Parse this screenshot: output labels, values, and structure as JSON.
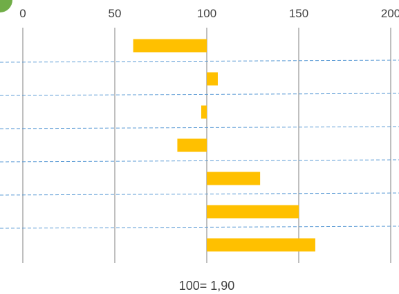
{
  "chart_data": {
    "type": "bar",
    "orientation": "horizontal",
    "baseline": 100,
    "xlim": [
      0,
      200
    ],
    "x_ticks": [
      0,
      50,
      100,
      150,
      200
    ],
    "x_tick_labels": [
      "0",
      "50",
      "100",
      "150",
      "200"
    ],
    "values": [
      60,
      106,
      97,
      84,
      129,
      150,
      159
    ],
    "caption": "100= 1,90",
    "grid": "vertical solid lines at ticks; dashed horizontal separators between bars",
    "colors": {
      "bar": "#FFC000",
      "grid": "#7F7F7F",
      "separator": "#5B9BD5",
      "text": "#404040",
      "badge": "#70AD47"
    }
  }
}
